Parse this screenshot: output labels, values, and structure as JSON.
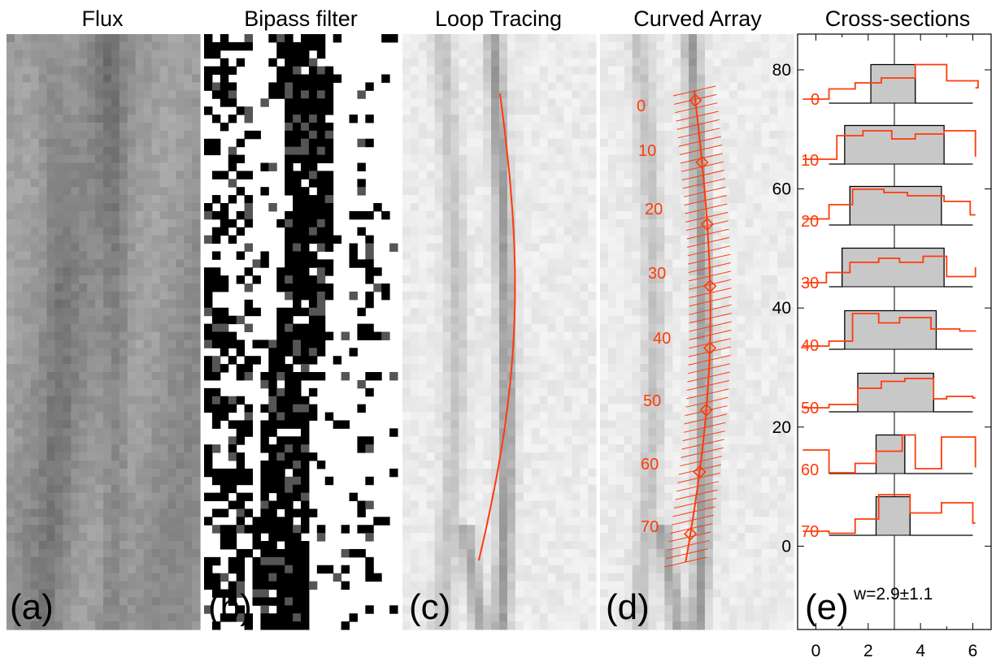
{
  "chart_data": [
    {
      "type": "heatmap",
      "title": "Flux",
      "panel_label": "(a)"
    },
    {
      "type": "heatmap",
      "title": "Bipass filter",
      "panel_label": "(b)"
    },
    {
      "type": "heatmap",
      "title": "Loop Tracing",
      "panel_label": "(c)"
    },
    {
      "type": "heatmap",
      "title": "Curved Array",
      "panel_label": "(d)",
      "position_labels": [
        "0",
        "10",
        "20",
        "30",
        "40",
        "50",
        "60",
        "70"
      ],
      "ytick_labels": [
        "0",
        "20",
        "40",
        "60",
        "80"
      ],
      "ylim": [
        -14,
        86
      ]
    },
    {
      "type": "line",
      "title": "Cross-sections",
      "panel_label": "(e)",
      "annotation": "w=2.9±1.1",
      "xtick_labels": [
        "0",
        "2",
        "4",
        "6"
      ],
      "xlim": [
        -0.7,
        6.7
      ],
      "center_x": 3,
      "series": [
        {
          "label": "0",
          "box": [
            2.1,
            3.8
          ],
          "profile": [
            -0.5,
            0.5,
            1.5,
            2.5,
            3.8,
            5,
            6.2
          ],
          "values": [
            0.1,
            0.35,
            0.5,
            0.62,
            0.95,
            0.55,
            0.38
          ]
        },
        {
          "label": "10",
          "box": [
            1.1,
            4.9
          ],
          "profile": [
            -0.5,
            0.8,
            1.8,
            2.9,
            3.8,
            4.9,
            6.1
          ],
          "values": [
            0.12,
            0.7,
            0.82,
            0.62,
            0.74,
            0.82,
            0.18
          ]
        },
        {
          "label": "20",
          "box": [
            1.3,
            4.8
          ],
          "profile": [
            -0.5,
            0.5,
            1.4,
            2.6,
            3.5,
            4.9,
            5.9
          ],
          "values": [
            0.15,
            0.5,
            0.88,
            0.8,
            0.72,
            0.58,
            0.25
          ]
        },
        {
          "label": "30",
          "box": [
            1.0,
            4.9
          ],
          "profile": [
            -0.5,
            0.4,
            1.3,
            2.4,
            3.2,
            4.1,
            5.0,
            6.1
          ],
          "values": [
            0.1,
            0.35,
            0.6,
            0.7,
            0.6,
            0.75,
            0.25,
            0.48
          ]
        },
        {
          "label": "40",
          "box": [
            1.1,
            4.6
          ],
          "profile": [
            -0.5,
            0.5,
            1.4,
            2.4,
            3.2,
            4.4,
            5.5,
            6.1
          ],
          "values": [
            0.08,
            0.2,
            0.88,
            0.65,
            0.78,
            0.5,
            0.45,
            0.46
          ]
        },
        {
          "label": "50",
          "box": [
            1.6,
            4.5
          ],
          "profile": [
            -0.5,
            0.5,
            1.6,
            2.5,
            3.4,
            4.5,
            5.0,
            6.0
          ],
          "values": [
            0.1,
            0.18,
            0.58,
            0.75,
            0.82,
            0.32,
            0.38,
            0.34
          ]
        },
        {
          "label": "60",
          "box": [
            2.3,
            3.4
          ],
          "profile": [
            -0.5,
            0.5,
            1.5,
            2.3,
            3.3,
            3.8,
            4.8,
            6.1
          ],
          "values": [
            0.58,
            0.02,
            0.25,
            0.55,
            0.95,
            0.12,
            0.9,
            0.15
          ]
        },
        {
          "label": "70",
          "box": [
            2.3,
            3.6
          ],
          "profile": [
            -0.5,
            0.5,
            1.5,
            2.4,
            3.6,
            4.8,
            6.0
          ],
          "values": [
            0.1,
            0.05,
            0.4,
            1.0,
            0.55,
            0.8,
            0.3
          ]
        }
      ]
    }
  ]
}
